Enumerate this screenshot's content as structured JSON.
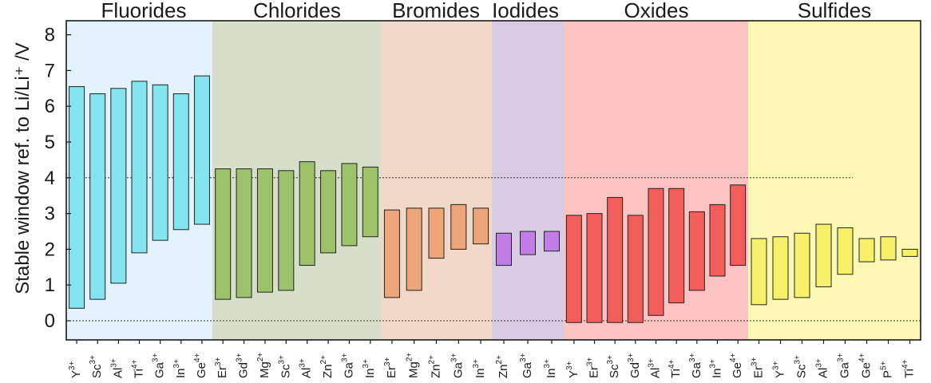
{
  "chart_data": {
    "type": "bar",
    "subtype": "floating-range",
    "ylabel": "Stable window ref. to Li/Li⁺ /V",
    "ylim": [
      -0.6,
      8.6
    ],
    "yticks": [
      0,
      1,
      2,
      3,
      4,
      5,
      6,
      7,
      8
    ],
    "reference_lines": [
      4,
      0
    ],
    "groups": [
      {
        "name": "Fluorides",
        "bg": "#e3f2fb",
        "fill": "#82e4ef",
        "bars": [
          {
            "ion": "Y",
            "charge": "3+",
            "low": 0.35,
            "high": 6.55
          },
          {
            "ion": "Sc",
            "charge": "3+",
            "low": 0.6,
            "high": 6.35
          },
          {
            "ion": "Al",
            "charge": "3+",
            "low": 1.05,
            "high": 6.5
          },
          {
            "ion": "Ti",
            "charge": "4+",
            "low": 1.9,
            "high": 6.7
          },
          {
            "ion": "Ga",
            "charge": "3+",
            "low": 2.25,
            "high": 6.6
          },
          {
            "ion": "In",
            "charge": "3+",
            "low": 2.55,
            "high": 6.35
          },
          {
            "ion": "Ge",
            "charge": "4+",
            "low": 2.7,
            "high": 6.85
          }
        ]
      },
      {
        "name": "Chlorides",
        "bg": "#d7dfca",
        "fill": "#9cc36a",
        "bars": [
          {
            "ion": "Er",
            "charge": "3+",
            "low": 0.6,
            "high": 4.25
          },
          {
            "ion": "Gd",
            "charge": "3+",
            "low": 0.65,
            "high": 4.25
          },
          {
            "ion": "Mg",
            "charge": "2+",
            "low": 0.8,
            "high": 4.25
          },
          {
            "ion": "Sc",
            "charge": "3+",
            "low": 0.85,
            "high": 4.2
          },
          {
            "ion": "Al",
            "charge": "3+",
            "low": 1.55,
            "high": 4.45
          },
          {
            "ion": "Zn",
            "charge": "2+",
            "low": 1.9,
            "high": 4.2
          },
          {
            "ion": "Ga",
            "charge": "3+",
            "low": 2.1,
            "high": 4.4
          },
          {
            "ion": "In",
            "charge": "3+",
            "low": 2.35,
            "high": 4.3
          }
        ]
      },
      {
        "name": "Bromides",
        "bg": "#f2d8c9",
        "fill": "#eda679",
        "bars": [
          {
            "ion": "Er",
            "charge": "3+",
            "low": 0.65,
            "high": 3.1
          },
          {
            "ion": "Mg",
            "charge": "2+",
            "low": 0.85,
            "high": 3.15
          },
          {
            "ion": "Zn",
            "charge": "2+",
            "low": 1.75,
            "high": 3.15
          },
          {
            "ion": "Ga",
            "charge": "3+",
            "low": 2.0,
            "high": 3.25
          },
          {
            "ion": "In",
            "charge": "3+",
            "low": 2.15,
            "high": 3.15
          }
        ]
      },
      {
        "name": "Iodides",
        "bg": "#d8cbe4",
        "fill": "#c27ee6",
        "bars": [
          {
            "ion": "Zn",
            "charge": "2+",
            "low": 1.55,
            "high": 2.45
          },
          {
            "ion": "Ga",
            "charge": "3+",
            "low": 1.85,
            "high": 2.5
          },
          {
            "ion": "In",
            "charge": "3+",
            "low": 1.95,
            "high": 2.5
          }
        ]
      },
      {
        "name": "Oxides",
        "bg": "#fbc4c2",
        "fill": "#f25e5a",
        "bars": [
          {
            "ion": "Y",
            "charge": "3+",
            "low": -0.05,
            "high": 2.95
          },
          {
            "ion": "Er",
            "charge": "3+",
            "low": -0.05,
            "high": 3.0
          },
          {
            "ion": "Sc",
            "charge": "3+",
            "low": -0.05,
            "high": 3.45
          },
          {
            "ion": "Gd",
            "charge": "3+",
            "low": -0.05,
            "high": 2.95
          },
          {
            "ion": "Al",
            "charge": "3+",
            "low": 0.15,
            "high": 3.7
          },
          {
            "ion": "Ti",
            "charge": "4+",
            "low": 0.5,
            "high": 3.7
          },
          {
            "ion": "Ga",
            "charge": "3+",
            "low": 0.85,
            "high": 3.05
          },
          {
            "ion": "In",
            "charge": "3+",
            "low": 1.25,
            "high": 3.25
          },
          {
            "ion": "Ge",
            "charge": "4+",
            "low": 1.55,
            "high": 3.8
          }
        ]
      },
      {
        "name": "Sulfides",
        "bg": "#fbf8b4",
        "fill": "#f7f16a",
        "bars": [
          {
            "ion": "Er",
            "charge": "3+",
            "low": 0.45,
            "high": 2.3
          },
          {
            "ion": "Y",
            "charge": "3+",
            "low": 0.6,
            "high": 2.35
          },
          {
            "ion": "Sc",
            "charge": "3+",
            "low": 0.65,
            "high": 2.45
          },
          {
            "ion": "Al",
            "charge": "3+",
            "low": 0.95,
            "high": 2.7
          },
          {
            "ion": "Ga",
            "charge": "3+",
            "low": 1.3,
            "high": 2.6
          },
          {
            "ion": "Ge",
            "charge": "4+",
            "low": 1.65,
            "high": 2.3
          },
          {
            "ion": "P",
            "charge": "5+",
            "low": 1.7,
            "high": 2.35
          },
          {
            "ion": "Ti",
            "charge": "4+",
            "low": 1.8,
            "high": 2.0
          }
        ]
      }
    ]
  }
}
